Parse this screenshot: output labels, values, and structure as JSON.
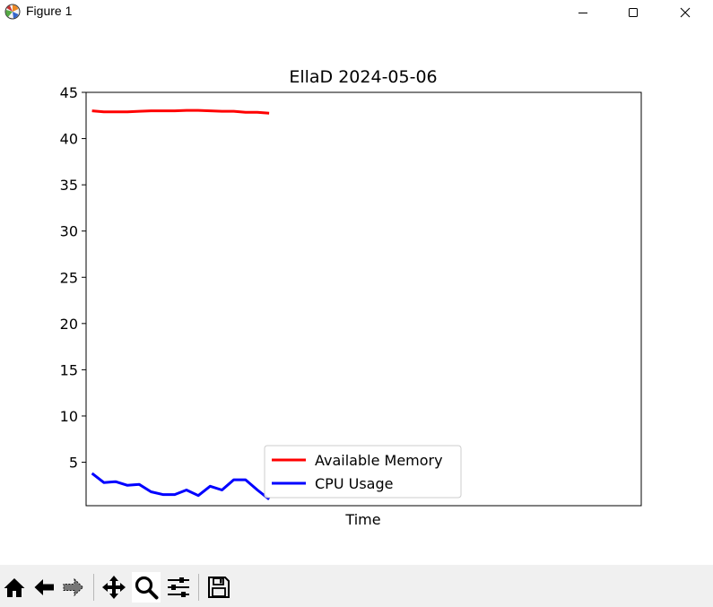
{
  "window": {
    "title": "Figure 1"
  },
  "toolbar": {
    "buttons": [
      {
        "name": "home",
        "icon": "home-icon"
      },
      {
        "name": "back",
        "icon": "arrow-left-icon"
      },
      {
        "name": "forward",
        "icon": "arrow-right-icon"
      },
      {
        "name": "pan",
        "icon": "move-arrows-icon"
      },
      {
        "name": "zoom",
        "icon": "magnifier-icon",
        "active": true
      },
      {
        "name": "configure-subplots",
        "icon": "sliders-icon"
      },
      {
        "name": "save",
        "icon": "floppy-disk-icon"
      }
    ]
  },
  "chart_data": {
    "type": "line",
    "title": "EllaD 2024-05-06",
    "xlabel": "Time",
    "ylabel": "",
    "ylim": [
      0.3,
      45
    ],
    "yticks": [
      "5",
      "10",
      "15",
      "20",
      "25",
      "30",
      "35",
      "40",
      "45"
    ],
    "xticks": [],
    "grid": false,
    "legend_position": "lower center",
    "x_axis_span_points": [
      0,
      47
    ],
    "series": [
      {
        "name": "Available Memory",
        "color": "#ff0000",
        "values": [
          43.0,
          42.9,
          42.9,
          42.9,
          42.95,
          43.0,
          43.0,
          43.0,
          43.05,
          43.05,
          43.0,
          42.95,
          42.95,
          42.85,
          42.85,
          42.75
        ]
      },
      {
        "name": "CPU Usage",
        "color": "#0000ff",
        "values": [
          3.8,
          2.8,
          2.9,
          2.5,
          2.6,
          1.8,
          1.5,
          1.5,
          2.0,
          1.4,
          2.4,
          2.0,
          3.1,
          3.1,
          2.0,
          1.0
        ]
      }
    ]
  }
}
